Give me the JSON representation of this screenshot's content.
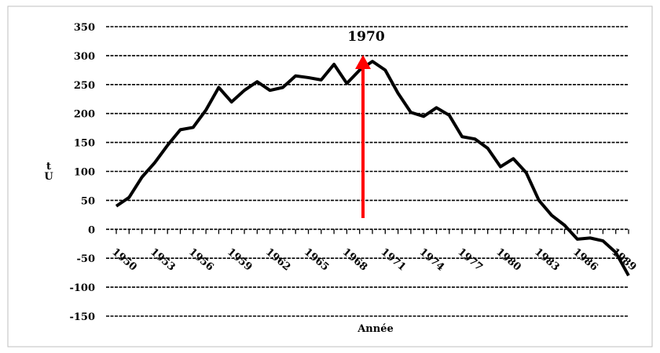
{
  "chart_data": {
    "type": "line",
    "xlabel": "Année",
    "ylabel": "tU",
    "x": [
      1950,
      1951,
      1952,
      1953,
      1954,
      1955,
      1956,
      1957,
      1958,
      1959,
      1960,
      1961,
      1962,
      1963,
      1964,
      1965,
      1966,
      1967,
      1968,
      1969,
      1970,
      1971,
      1972,
      1973,
      1974,
      1975,
      1976,
      1977,
      1978,
      1979,
      1980,
      1981,
      1982,
      1983,
      1984,
      1985,
      1986,
      1987,
      1988,
      1989,
      1990
    ],
    "values": [
      40,
      55,
      90,
      115,
      145,
      172,
      176,
      206,
      245,
      220,
      240,
      255,
      240,
      245,
      265,
      262,
      258,
      285,
      252,
      275,
      290,
      275,
      235,
      202,
      195,
      210,
      197,
      160,
      156,
      140,
      108,
      122,
      98,
      50,
      24,
      7,
      -17,
      -15,
      -20,
      -40,
      -80
    ],
    "color": "#000000",
    "xlim": [
      1950,
      1990
    ],
    "xticks": [
      1950,
      1953,
      1956,
      1959,
      1962,
      1965,
      1968,
      1971,
      1974,
      1977,
      1980,
      1983,
      1986,
      1989
    ],
    "ylim": [
      -150,
      350
    ],
    "yticks": [
      -150,
      -100,
      -50,
      0,
      50,
      100,
      150,
      200,
      250,
      300,
      350
    ],
    "grid": true,
    "annotations": [
      {
        "text": "1970",
        "x": 1970,
        "color": "#ff0000"
      }
    ]
  }
}
